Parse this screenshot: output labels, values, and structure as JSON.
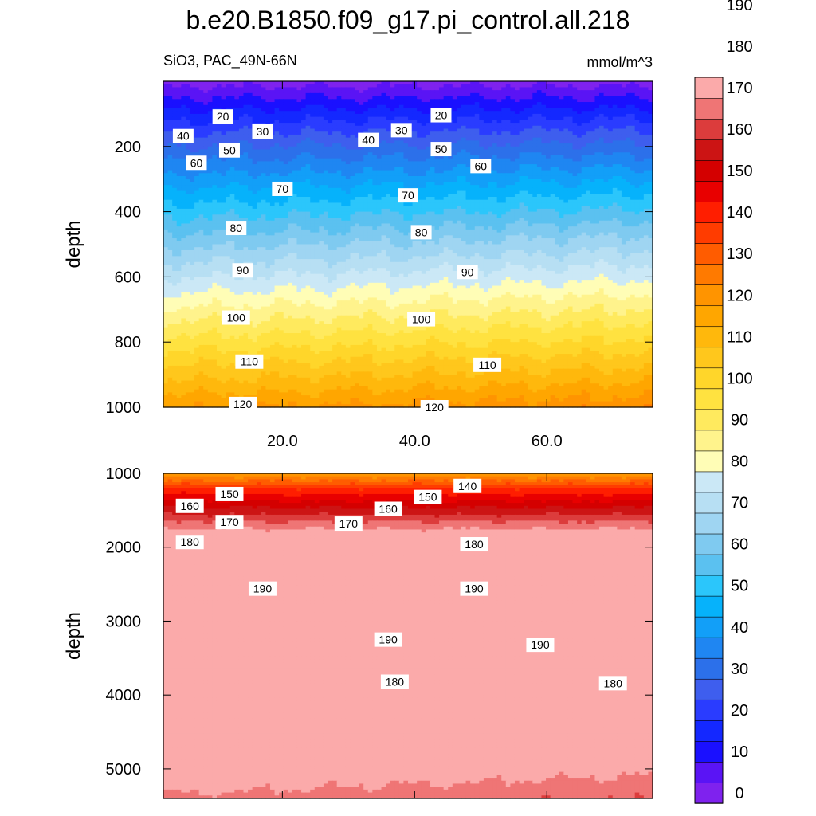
{
  "colors": [
    "#7f22ee",
    "#5a14f5",
    "#1a10ff",
    "#1428ff",
    "#2a3cff",
    "#3e5eee",
    "#2c70ea",
    "#1f86f2",
    "#129ff8",
    "#06b2fb",
    "#2bc6fb",
    "#5bc1f0",
    "#7fcaf0",
    "#9fd5f2",
    "#b7dff3",
    "#cbe8f6",
    "#fffdb6",
    "#fff38c",
    "#ffea5e",
    "#ffe240",
    "#ffd62a",
    "#ffc71c",
    "#ffb80c",
    "#ffa600",
    "#ff9400",
    "#ff7a00",
    "#ff5c00",
    "#ff3c00",
    "#ff1e00",
    "#e80000",
    "#d40000",
    "#cc1414",
    "#dc3c3c",
    "#ef7575",
    "#fbaaaa"
  ],
  "chart_data": {
    "type": "contour",
    "title": "b.e20.B1850.f09_g17.pi_control.all.218",
    "variable": "SiO3, PAC_49N-66N",
    "units": "mmol/m^3",
    "x_ticks": [
      "20.0",
      "40.0",
      "60.0"
    ],
    "xlim": [
      2,
      76
    ],
    "panels": [
      {
        "ylabel": "depth",
        "ylim": [
          0,
          1000
        ],
        "y_ticks": [
          "200",
          "400",
          "600",
          "800",
          "1000"
        ],
        "y_tick_values": [
          200,
          400,
          600,
          800,
          1000
        ],
        "contour_labels": [
          {
            "text": "20",
            "x": 11,
            "y": 108
          },
          {
            "text": "20",
            "x": 44,
            "y": 104
          },
          {
            "text": "30",
            "x": 17,
            "y": 154
          },
          {
            "text": "30",
            "x": 38,
            "y": 150
          },
          {
            "text": "40",
            "x": 5,
            "y": 168
          },
          {
            "text": "40",
            "x": 33,
            "y": 180
          },
          {
            "text": "50",
            "x": 12,
            "y": 212
          },
          {
            "text": "50",
            "x": 44,
            "y": 208
          },
          {
            "text": "60",
            "x": 7,
            "y": 250
          },
          {
            "text": "60",
            "x": 50,
            "y": 260
          },
          {
            "text": "70",
            "x": 20,
            "y": 330
          },
          {
            "text": "70",
            "x": 39,
            "y": 350
          },
          {
            "text": "80",
            "x": 13,
            "y": 450
          },
          {
            "text": "80",
            "x": 41,
            "y": 463
          },
          {
            "text": "90",
            "x": 14,
            "y": 580
          },
          {
            "text": "90",
            "x": 48,
            "y": 585
          },
          {
            "text": "100",
            "x": 13,
            "y": 725
          },
          {
            "text": "100",
            "x": 41,
            "y": 730
          },
          {
            "text": "110",
            "x": 15,
            "y": 860
          },
          {
            "text": "110",
            "x": 51,
            "y": 870
          },
          {
            "text": "120",
            "x": 14,
            "y": 990
          },
          {
            "text": "120",
            "x": 43,
            "y": 1000
          }
        ]
      },
      {
        "ylabel": "depth",
        "ylim": [
          1000,
          5400
        ],
        "y_ticks": [
          "1000",
          "2000",
          "3000",
          "4000",
          "5000"
        ],
        "y_tick_values": [
          1000,
          2000,
          3000,
          4000,
          5000
        ],
        "contour_labels": [
          {
            "text": "140",
            "x": 48,
            "y": 1170
          },
          {
            "text": "150",
            "x": 12,
            "y": 1280
          },
          {
            "text": "150",
            "x": 42,
            "y": 1320
          },
          {
            "text": "160",
            "x": 6,
            "y": 1440
          },
          {
            "text": "160",
            "x": 36,
            "y": 1480
          },
          {
            "text": "170",
            "x": 12,
            "y": 1660
          },
          {
            "text": "170",
            "x": 30,
            "y": 1680
          },
          {
            "text": "180",
            "x": 6,
            "y": 1930
          },
          {
            "text": "180",
            "x": 49,
            "y": 1960
          },
          {
            "text": "190",
            "x": 17,
            "y": 2560
          },
          {
            "text": "190",
            "x": 49,
            "y": 2560
          },
          {
            "text": "190",
            "x": 36,
            "y": 3250
          },
          {
            "text": "190",
            "x": 59,
            "y": 3320
          },
          {
            "text": "180",
            "x": 37,
            "y": 3820
          },
          {
            "text": "180",
            "x": 70,
            "y": 3840
          }
        ]
      }
    ],
    "colorbar": {
      "levels": [
        0,
        5,
        10,
        15,
        20,
        25,
        30,
        35,
        40,
        45,
        50,
        55,
        60,
        65,
        70,
        75,
        80,
        85,
        90,
        95,
        100,
        105,
        110,
        115,
        120,
        125,
        130,
        135,
        140,
        145,
        150,
        155,
        160,
        165,
        170,
        175,
        180,
        185,
        190,
        195
      ],
      "tick_labels": [
        "0",
        "10",
        "20",
        "30",
        "40",
        "50",
        "60",
        "70",
        "80",
        "90",
        "100",
        "110",
        "120",
        "130",
        "140",
        "150",
        "160",
        "170",
        "180",
        "190"
      ]
    }
  }
}
